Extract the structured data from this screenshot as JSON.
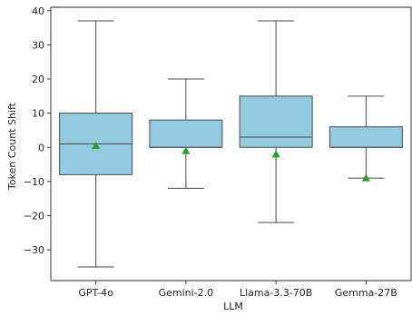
{
  "chart_data": {
    "type": "box",
    "title": "",
    "xlabel": "LLM",
    "ylabel": "Token Count Shift",
    "ylim": [
      -39,
      41
    ],
    "yticks": [
      40,
      30,
      20,
      10,
      0,
      -10,
      -20,
      -30
    ],
    "ytick_labels": [
      "40",
      "30",
      "20",
      "10",
      "0",
      "−10",
      "−20",
      "−30"
    ],
    "grid": false,
    "box_color": "#92cbe0",
    "line_color": "#4a4a4a",
    "mean_color": "#2ca02c",
    "categories": [
      "GPT-4o",
      "Gemini-2.0",
      "Llama-3.3-70B",
      "Gemma-27B"
    ],
    "boxes": [
      {
        "label": "GPT-4o",
        "whisker_low": -35,
        "q1": -8,
        "median": 1,
        "q3": 10,
        "whisker_high": 37,
        "mean": 0.5
      },
      {
        "label": "Gemini-2.0",
        "whisker_low": -12,
        "q1": 0,
        "median": 0,
        "q3": 8,
        "whisker_high": 20,
        "mean": -1
      },
      {
        "label": "Llama-3.3-70B",
        "whisker_low": -22,
        "q1": 0,
        "median": 3,
        "q3": 15,
        "whisker_high": 37,
        "mean": -2
      },
      {
        "label": "Gemma-27B",
        "whisker_low": -9,
        "q1": 0,
        "median": 0,
        "q3": 6,
        "whisker_high": 15,
        "mean": -9
      }
    ]
  }
}
